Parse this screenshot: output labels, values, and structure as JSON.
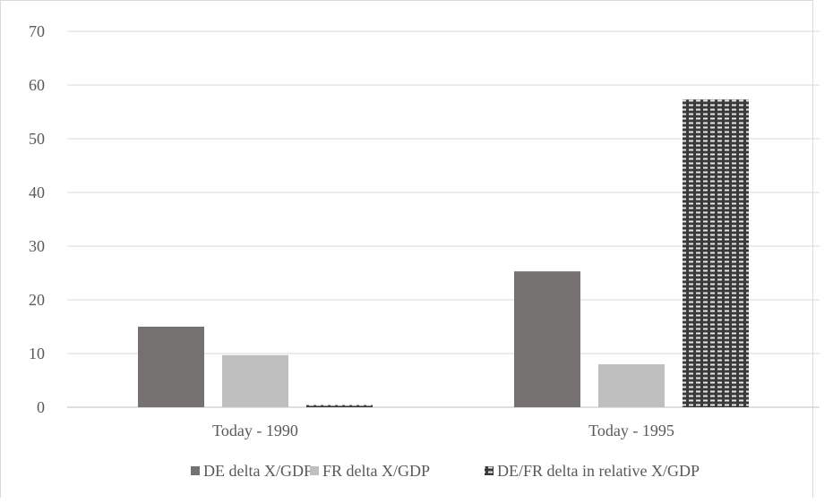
{
  "chart_data": {
    "type": "bar",
    "title": "",
    "xlabel": "",
    "ylabel": "",
    "categories": [
      "Today - 1990",
      "Today - 1995"
    ],
    "ylim": [
      0,
      70
    ],
    "yticks": [
      0,
      10,
      20,
      30,
      40,
      50,
      60,
      70
    ],
    "grid": true,
    "legend_position": "bottom",
    "series": [
      {
        "name": "DE delta X/GDP",
        "values": [
          15.0,
          25.3
        ],
        "color": "#767171",
        "pattern": "solid"
      },
      {
        "name": "FR delta X/GDP",
        "values": [
          9.7,
          8.0
        ],
        "color": "#bfbfbf",
        "pattern": "solid"
      },
      {
        "name": "DE/FR delta in relative X/GDP",
        "values": [
          0.4,
          57.3
        ],
        "color": "#404040",
        "pattern": "dotted-grid"
      }
    ]
  }
}
